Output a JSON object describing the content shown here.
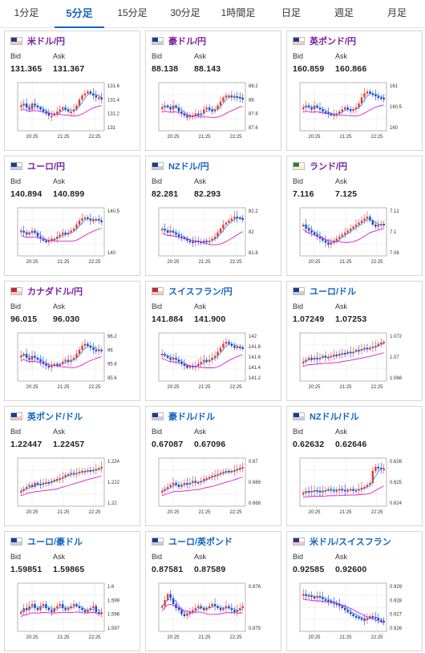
{
  "tabs": [
    {
      "label": "1分足",
      "active": false
    },
    {
      "label": "5分足",
      "active": true
    },
    {
      "label": "15分足",
      "active": false
    },
    {
      "label": "30分足",
      "active": false
    },
    {
      "label": "1時間足",
      "active": false
    },
    {
      "label": "日足",
      "active": false
    },
    {
      "label": "週足",
      "active": false
    },
    {
      "label": "月足",
      "active": false
    }
  ],
  "labels": {
    "bid": "Bid",
    "ask": "Ask"
  },
  "x_ticks": [
    "20:25",
    "21:25",
    "22:25"
  ],
  "colors": {
    "up": "#e53935",
    "down": "#1e40c8",
    "ma_fast": "#2196f3",
    "ma_slow": "#d81bd8",
    "purple_title": "#7b1fa2",
    "blue_title": "#1565c0",
    "active_tab": "#1565c0"
  },
  "cards": [
    {
      "pair": "米ドル/円",
      "flag": "us",
      "title_color": "purple",
      "bid": "131.365",
      "ask": "131.367",
      "y_ticks": [
        "131.6",
        "131.4",
        "131.2",
        "131"
      ],
      "trend": [
        0.55,
        0.6,
        0.5,
        0.45,
        0.6,
        0.55,
        0.5,
        0.45,
        0.4,
        0.35,
        0.3,
        0.3,
        0.35,
        0.4,
        0.45,
        0.5,
        0.45,
        0.4,
        0.4,
        0.45,
        0.55,
        0.7,
        0.8,
        0.85,
        0.9,
        0.85,
        0.8,
        0.75,
        0.75,
        0.7
      ]
    },
    {
      "pair": "豪ドル/円",
      "flag": "au",
      "title_color": "purple",
      "bid": "88.138",
      "ask": "88.143",
      "y_ticks": [
        "88.2",
        "88",
        "87.8",
        "87.6"
      ],
      "trend": [
        0.5,
        0.55,
        0.5,
        0.45,
        0.55,
        0.5,
        0.4,
        0.35,
        0.3,
        0.25,
        0.3,
        0.3,
        0.35,
        0.3,
        0.35,
        0.45,
        0.5,
        0.45,
        0.4,
        0.45,
        0.55,
        0.65,
        0.75,
        0.8,
        0.8,
        0.75,
        0.78,
        0.76,
        0.74,
        0.72
      ]
    },
    {
      "pair": "英ポンド/円",
      "flag": "gb",
      "title_color": "purple",
      "bid": "160.859",
      "ask": "160.866",
      "y_ticks": [
        "161",
        "160.5",
        "160"
      ],
      "trend": [
        0.5,
        0.55,
        0.5,
        0.45,
        0.55,
        0.5,
        0.45,
        0.4,
        0.38,
        0.35,
        0.3,
        0.33,
        0.35,
        0.4,
        0.45,
        0.5,
        0.45,
        0.42,
        0.45,
        0.5,
        0.6,
        0.75,
        0.85,
        0.9,
        0.85,
        0.82,
        0.78,
        0.75,
        0.74,
        0.72
      ]
    },
    {
      "pair": "ユーロ/円",
      "flag": "eu",
      "title_color": "purple",
      "bid": "140.894",
      "ask": "140.899",
      "y_ticks": [
        "140.5",
        "140"
      ],
      "trend": [
        0.55,
        0.5,
        0.45,
        0.5,
        0.55,
        0.5,
        0.4,
        0.35,
        0.3,
        0.28,
        0.3,
        0.35,
        0.35,
        0.4,
        0.45,
        0.5,
        0.45,
        0.5,
        0.55,
        0.6,
        0.7,
        0.8,
        0.85,
        0.88,
        0.85,
        0.8,
        0.82,
        0.84,
        0.8,
        0.78
      ]
    },
    {
      "pair": "NZドル/円",
      "flag": "nz",
      "title_color": "blue",
      "bid": "82.281",
      "ask": "82.293",
      "y_ticks": [
        "82.2",
        "82",
        "81.8"
      ],
      "trend": [
        0.6,
        0.55,
        0.5,
        0.55,
        0.5,
        0.45,
        0.4,
        0.38,
        0.35,
        0.3,
        0.28,
        0.25,
        0.3,
        0.28,
        0.25,
        0.3,
        0.28,
        0.3,
        0.35,
        0.4,
        0.5,
        0.6,
        0.7,
        0.75,
        0.8,
        0.85,
        0.9,
        0.88,
        0.86,
        0.85
      ]
    },
    {
      "pair": "ランド/円",
      "flag": "za",
      "title_color": "purple",
      "bid": "7.116",
      "ask": "7.125",
      "y_ticks": [
        "7.12",
        "7.1",
        "7.08"
      ],
      "trend": [
        0.7,
        0.6,
        0.55,
        0.5,
        0.45,
        0.4,
        0.35,
        0.3,
        0.25,
        0.2,
        0.25,
        0.3,
        0.35,
        0.4,
        0.45,
        0.5,
        0.55,
        0.6,
        0.65,
        0.7,
        0.75,
        0.8,
        0.85,
        0.9,
        0.8,
        0.7,
        0.65,
        0.7,
        0.72,
        0.7
      ]
    },
    {
      "pair": "カナダドル/円",
      "flag": "ca",
      "title_color": "purple",
      "bid": "96.015",
      "ask": "96.030",
      "y_ticks": [
        "96.2",
        "96",
        "95.8",
        "95.6"
      ],
      "trend": [
        0.55,
        0.6,
        0.5,
        0.45,
        0.55,
        0.5,
        0.45,
        0.4,
        0.35,
        0.3,
        0.28,
        0.3,
        0.35,
        0.3,
        0.35,
        0.4,
        0.45,
        0.4,
        0.45,
        0.5,
        0.6,
        0.7,
        0.8,
        0.85,
        0.8,
        0.75,
        0.7,
        0.68,
        0.7,
        0.68
      ]
    },
    {
      "pair": "スイスフラン/円",
      "flag": "ch",
      "title_color": "blue",
      "bid": "141.884",
      "ask": "141.900",
      "y_ticks": [
        "142",
        "141.8",
        "141.6",
        "141.4",
        "141.2"
      ],
      "trend": [
        0.6,
        0.55,
        0.5,
        0.45,
        0.5,
        0.45,
        0.4,
        0.35,
        0.3,
        0.25,
        0.3,
        0.28,
        0.3,
        0.35,
        0.4,
        0.45,
        0.4,
        0.45,
        0.5,
        0.55,
        0.65,
        0.75,
        0.85,
        0.9,
        0.85,
        0.8,
        0.75,
        0.78,
        0.76,
        0.74
      ]
    },
    {
      "pair": "ユーロ/ドル",
      "flag": "eu",
      "title_color": "blue",
      "bid": "1.07249",
      "ask": "1.07253",
      "y_ticks": [
        "1.072",
        "1.07",
        "1.068"
      ],
      "trend": [
        0.4,
        0.45,
        0.5,
        0.45,
        0.5,
        0.48,
        0.5,
        0.55,
        0.5,
        0.52,
        0.55,
        0.58,
        0.55,
        0.6,
        0.62,
        0.6,
        0.65,
        0.62,
        0.65,
        0.7,
        0.68,
        0.72,
        0.75,
        0.72,
        0.75,
        0.78,
        0.8,
        0.85,
        0.88,
        0.9
      ]
    },
    {
      "pair": "英ポンド/ドル",
      "flag": "gb",
      "title_color": "blue",
      "bid": "1.22447",
      "ask": "1.22457",
      "y_ticks": [
        "1.224",
        "1.222",
        "1.22"
      ],
      "trend": [
        0.3,
        0.35,
        0.4,
        0.45,
        0.4,
        0.5,
        0.48,
        0.45,
        0.5,
        0.52,
        0.5,
        0.55,
        0.58,
        0.6,
        0.62,
        0.65,
        0.7,
        0.72,
        0.75,
        0.73,
        0.75,
        0.78,
        0.8,
        0.8,
        0.82,
        0.8,
        0.83,
        0.85,
        0.87,
        0.9
      ]
    },
    {
      "pair": "豪ドル/ドル",
      "flag": "au",
      "title_color": "blue",
      "bid": "0.67087",
      "ask": "0.67096",
      "y_ticks": [
        "0.67",
        "0.669",
        "0.668"
      ],
      "trend": [
        0.3,
        0.35,
        0.4,
        0.45,
        0.5,
        0.45,
        0.4,
        0.45,
        0.5,
        0.48,
        0.5,
        0.55,
        0.5,
        0.52,
        0.55,
        0.6,
        0.62,
        0.65,
        0.68,
        0.7,
        0.72,
        0.75,
        0.78,
        0.8,
        0.78,
        0.8,
        0.82,
        0.85,
        0.88,
        0.9
      ]
    },
    {
      "pair": "NZドル/ドル",
      "flag": "nz",
      "title_color": "blue",
      "bid": "0.62632",
      "ask": "0.62646",
      "y_ticks": [
        "0.626",
        "0.625",
        "0.624"
      ],
      "trend": [
        0.25,
        0.3,
        0.28,
        0.3,
        0.32,
        0.3,
        0.28,
        0.3,
        0.32,
        0.35,
        0.33,
        0.3,
        0.32,
        0.35,
        0.33,
        0.3,
        0.32,
        0.35,
        0.3,
        0.32,
        0.35,
        0.38,
        0.4,
        0.45,
        0.5,
        0.8,
        0.9,
        0.88,
        0.85,
        0.86
      ]
    },
    {
      "pair": "ユーロ/豪ドル",
      "flag": "eu",
      "title_color": "blue",
      "bid": "1.59851",
      "ask": "1.59865",
      "y_ticks": [
        "1.6",
        "1.599",
        "1.598",
        "1.597"
      ],
      "trend": [
        0.4,
        0.5,
        0.45,
        0.55,
        0.6,
        0.5,
        0.45,
        0.55,
        0.6,
        0.5,
        0.45,
        0.4,
        0.5,
        0.55,
        0.6,
        0.5,
        0.45,
        0.5,
        0.55,
        0.6,
        0.55,
        0.5,
        0.45,
        0.4,
        0.45,
        0.5,
        0.55,
        0.4,
        0.35,
        0.4
      ]
    },
    {
      "pair": "ユーロ/英ポンド",
      "flag": "eu",
      "title_color": "blue",
      "bid": "0.87581",
      "ask": "0.87589",
      "y_ticks": [
        "0.876",
        "0.875"
      ],
      "trend": [
        0.55,
        0.7,
        0.85,
        0.75,
        0.6,
        0.5,
        0.45,
        0.35,
        0.3,
        0.35,
        0.4,
        0.45,
        0.5,
        0.55,
        0.5,
        0.45,
        0.5,
        0.55,
        0.6,
        0.55,
        0.5,
        0.45,
        0.5,
        0.55,
        0.5,
        0.45,
        0.4,
        0.45,
        0.5,
        0.55
      ]
    },
    {
      "pair": "米ドル/スイスフラン",
      "flag": "us",
      "title_color": "blue",
      "bid": "0.92585",
      "ask": "0.92600",
      "y_ticks": [
        "0.929",
        "0.928",
        "0.927",
        "0.926"
      ],
      "trend": [
        0.85,
        0.8,
        0.82,
        0.78,
        0.75,
        0.8,
        0.78,
        0.72,
        0.7,
        0.68,
        0.65,
        0.62,
        0.6,
        0.55,
        0.5,
        0.45,
        0.4,
        0.35,
        0.3,
        0.28,
        0.25,
        0.22,
        0.2,
        0.25,
        0.3,
        0.28,
        0.25,
        0.2,
        0.18,
        0.15
      ]
    }
  ]
}
